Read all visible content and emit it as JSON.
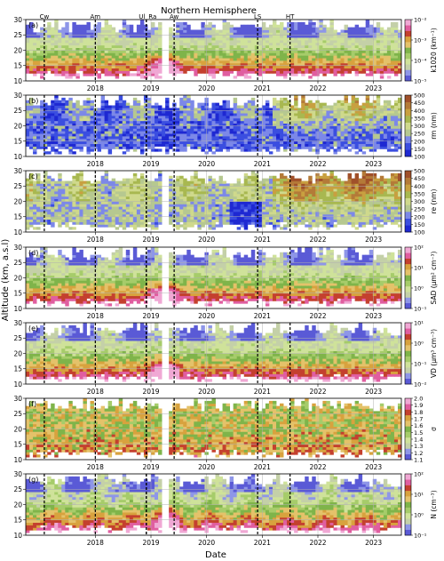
{
  "chart_data": {
    "type": "heatmap",
    "title": "Northern Hemisphere",
    "xlabel": "Date",
    "ylabel": "Altitude (km, a.s.l)",
    "x_ticks": [
      "2018",
      "2019",
      "2020",
      "2021",
      "2022",
      "2023"
    ],
    "x_range": [
      "2017-04",
      "2024-01"
    ],
    "y_ticks": [
      10,
      15,
      20,
      25,
      30
    ],
    "ylim": [
      10,
      30
    ],
    "events": [
      {
        "label": "Cw",
        "date": "2017-08"
      },
      {
        "label": "Am",
        "date": "2018-07"
      },
      {
        "label": "Ul",
        "date": "2019-06"
      },
      {
        "label": "Ra",
        "date": "2019-06"
      },
      {
        "label": "Aw",
        "date": "2019-12"
      },
      {
        "label": "LS",
        "date": "2021-06"
      },
      {
        "label": "HT",
        "date": "2022-01"
      }
    ],
    "panels": [
      {
        "tag": "(a)",
        "cbar_label": "k1020 (km⁻¹)",
        "scale": "log",
        "ticks": [
          "10⁻²",
          "10⁻³",
          "10⁻⁴",
          "10⁻⁵"
        ],
        "cmap": "PiYG_r"
      },
      {
        "tag": "(b)",
        "cbar_label": "rm (nm)",
        "scale": "linear",
        "ticks": [
          "500",
          "450",
          "400",
          "350",
          "300",
          "250",
          "200",
          "150",
          "100"
        ],
        "cmap": "blue-green-brown"
      },
      {
        "tag": "(c)",
        "cbar_label": "re (nm)",
        "scale": "linear",
        "ticks": [
          "500",
          "450",
          "400",
          "350",
          "300",
          "250",
          "200",
          "150",
          "100"
        ],
        "cmap": "blue-green-brown"
      },
      {
        "tag": "(d)",
        "cbar_label": "SAD (μm² cm⁻³)",
        "scale": "log",
        "ticks": [
          "10²",
          "10¹",
          "10⁰",
          "10⁻¹"
        ],
        "cmap": "PiYG_r"
      },
      {
        "tag": "(e)",
        "cbar_label": "VD (μm³ cm⁻³)",
        "scale": "log",
        "ticks": [
          "10¹",
          "10⁰",
          "10⁻¹",
          "10⁻²"
        ],
        "cmap": "PiYG_r"
      },
      {
        "tag": "(f)",
        "cbar_label": "σ",
        "scale": "linear",
        "ticks": [
          "2.0",
          "1.9",
          "1.8",
          "1.7",
          "1.6",
          "1.5",
          "1.4",
          "1.3",
          "1.2",
          "1.1"
        ],
        "cmap": "PiYG_r"
      },
      {
        "tag": "(g)",
        "cbar_label": "N (cm⁻³)",
        "scale": "log",
        "ticks": [
          "10²",
          "10¹",
          "10⁰",
          "10⁻¹"
        ],
        "cmap": "PiYG_r"
      }
    ]
  }
}
